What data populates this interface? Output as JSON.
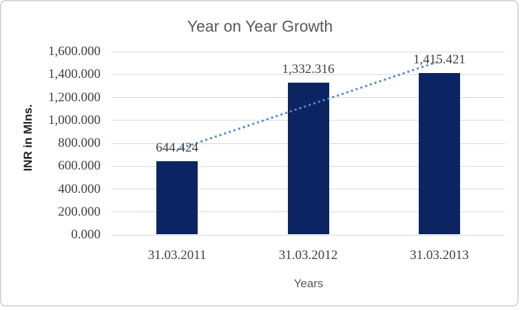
{
  "chart_data": {
    "type": "bar",
    "title": "Year on Year Growth",
    "xlabel": "Years",
    "ylabel": "INR in Mlns.",
    "categories": [
      "31.03.2011",
      "31.03.2012",
      "31.03.2013"
    ],
    "values": [
      644.424,
      1332.316,
      1415.421
    ],
    "data_labels": [
      "644.424",
      "1,332.316",
      "1,415.421"
    ],
    "ylim": [
      0,
      1600
    ],
    "ytick_step": 200,
    "ytick_labels": [
      "0.000",
      "200.000",
      "400.000",
      "600.000",
      "800.000",
      "1,000.000",
      "1,200.000",
      "1,400.000",
      "1,600.000"
    ],
    "grid": true,
    "legend_position": "none",
    "trendline": {
      "kind": "linear",
      "line_style": "dotted",
      "start_value": 745,
      "end_value": 1516
    },
    "colors": {
      "bar_fill": "#0C2562",
      "trendline": "#5588CB",
      "gridline": "#D9D9D9",
      "title_text": "#595959",
      "axis_tick_text": "#404040",
      "data_label_text": "#404040",
      "x_axis_title_text": "#595959",
      "y_axis_title_text": "#1f1f1f",
      "frame_border": "#D7D7D7",
      "background": "#ffffff"
    }
  }
}
